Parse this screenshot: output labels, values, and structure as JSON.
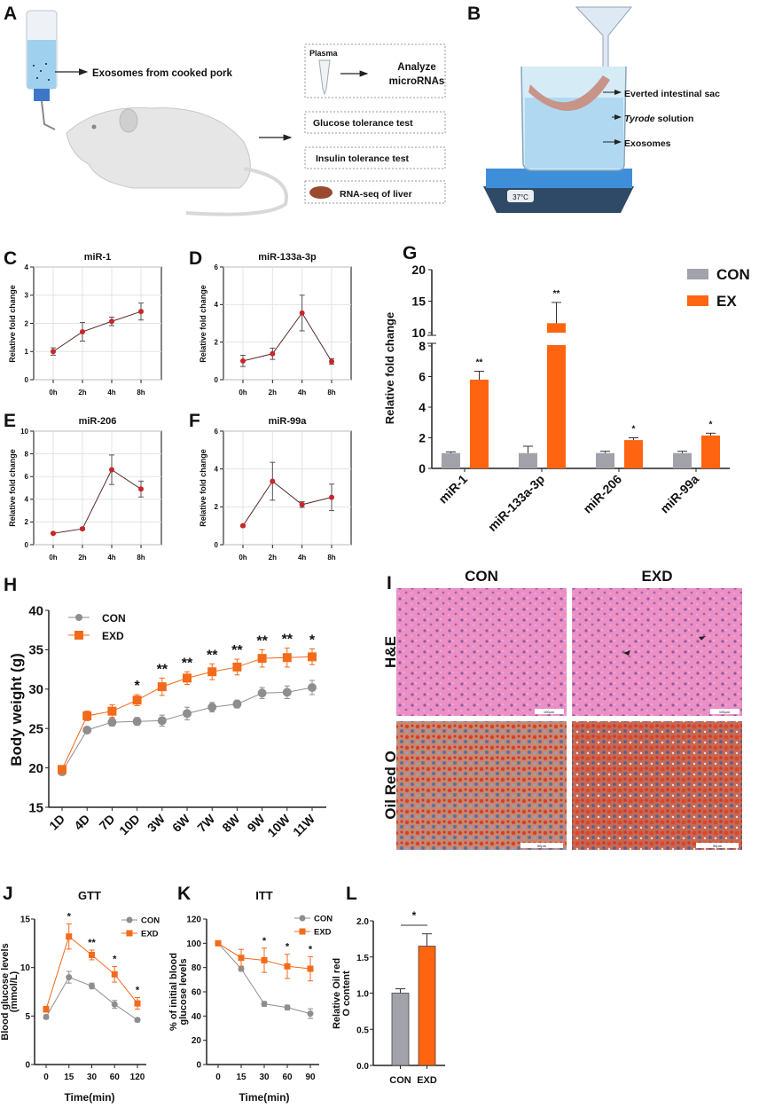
{
  "panel_letters": {
    "A": "A",
    "B": "B",
    "C": "C",
    "D": "D",
    "E": "E",
    "F": "F",
    "G": "G",
    "H": "H",
    "I": "I",
    "J": "J",
    "K": "K",
    "L": "L"
  },
  "panel_a": {
    "exosome_label": "Exosomes from cooked pork",
    "plasma_label": "Plasma",
    "analyze_line1": "Analyze",
    "analyze_line2": "microRNAs",
    "gtt_box": "Glucose tolerance test",
    "itt_box": "Insulin tolerance test",
    "rnaseq_box": "RNA-seq of liver"
  },
  "panel_b": {
    "sac_label": "Everted intestinal sac",
    "tyrode_italic": "Tyrode",
    "tyrode_rest": " solution",
    "exosomes_label": "Exosomes",
    "temperature": "37°C"
  },
  "panel_i": {
    "col_con": "CON",
    "col_exd": "EXD",
    "row_he": "H&E",
    "row_oil": "Oil Red O",
    "scale_he": "100μm",
    "scale_oil": "50μm"
  },
  "colors": {
    "marker_red": "#c8262a",
    "con_gray": "#8e8e8e",
    "exd_orange": "#f26a1b",
    "bar_gray": "#a2a2aa",
    "bar_orange": "#ff6410"
  },
  "chart_data": [
    {
      "panel": "C",
      "type": "line",
      "title": "miR-1",
      "ylabel": "Relative fold change",
      "categories": [
        "0h",
        "2h",
        "4h",
        "8h"
      ],
      "ylim": [
        0,
        4
      ],
      "yticks": [
        "0",
        "1",
        "2",
        "3",
        "4"
      ],
      "grid": true,
      "series": [
        {
          "values": [
            1.0,
            1.7,
            2.07,
            2.42
          ],
          "errors": [
            0.13,
            0.33,
            0.15,
            0.3
          ]
        }
      ]
    },
    {
      "panel": "D",
      "type": "line",
      "title": "miR-133a-3p",
      "ylabel": "Relative fold change",
      "categories": [
        "0h",
        "2h",
        "4h",
        "8h"
      ],
      "ylim": [
        0,
        6
      ],
      "yticks": [
        "0",
        "2",
        "4",
        "6"
      ],
      "grid": true,
      "series": [
        {
          "values": [
            1.0,
            1.38,
            3.55,
            0.97
          ],
          "errors": [
            0.3,
            0.3,
            0.95,
            0.15
          ]
        }
      ]
    },
    {
      "panel": "E",
      "type": "line",
      "title": "miR-206",
      "ylabel": "Relative fold change",
      "categories": [
        "0h",
        "2h",
        "4h",
        "8h"
      ],
      "ylim": [
        0,
        10
      ],
      "yticks": [
        "0",
        "2",
        "4",
        "6",
        "8",
        "10"
      ],
      "grid": true,
      "series": [
        {
          "values": [
            1.0,
            1.4,
            6.6,
            4.9
          ],
          "errors": [
            0.05,
            0.1,
            1.3,
            0.7
          ]
        }
      ]
    },
    {
      "panel": "F",
      "type": "line",
      "title": "miR-99a",
      "ylabel": "Relative fold change",
      "categories": [
        "0h",
        "2h",
        "4h",
        "8h"
      ],
      "ylim": [
        0,
        6
      ],
      "yticks": [
        "0",
        "2",
        "4",
        "6"
      ],
      "grid": true,
      "series": [
        {
          "values": [
            1.0,
            3.35,
            2.12,
            2.5
          ],
          "errors": [
            0.05,
            1.0,
            0.15,
            0.7
          ]
        }
      ]
    },
    {
      "panel": "G",
      "type": "bar",
      "ylabel": "Relative fold change",
      "categories": [
        "miR-1",
        "miR-133a-3p",
        "miR-206",
        "miR-99a"
      ],
      "ylim": [
        0,
        20
      ],
      "axis_break": [
        8,
        10
      ],
      "yticks": [
        "0",
        "2",
        "4",
        "6",
        "8",
        "10",
        "15",
        "20"
      ],
      "legend": "top-right",
      "series": [
        {
          "name": "CON",
          "values": [
            1.0,
            1.0,
            1.0,
            1.0
          ],
          "errors": [
            0.08,
            0.45,
            0.12,
            0.12
          ]
        },
        {
          "name": "EX",
          "values": [
            5.8,
            11.5,
            1.85,
            2.15
          ],
          "errors": [
            0.55,
            3.3,
            0.15,
            0.15
          ]
        }
      ],
      "significance": [
        "**",
        "**",
        "*",
        "*"
      ]
    },
    {
      "panel": "H",
      "type": "line",
      "ylabel": "Body weight (g)",
      "categories": [
        "1D",
        "4D",
        "7D",
        "10D",
        "3W",
        "6W",
        "7W",
        "8W",
        "9W",
        "10W",
        "11W"
      ],
      "ylim": [
        15,
        40
      ],
      "yticks": [
        "15",
        "20",
        "25",
        "30",
        "35",
        "40"
      ],
      "legend": "top-left",
      "series": [
        {
          "name": "CON",
          "values": [
            19.5,
            24.8,
            25.8,
            25.9,
            26.0,
            26.9,
            27.7,
            28.1,
            29.5,
            29.6,
            30.2
          ],
          "errors": [
            0.4,
            0.4,
            0.5,
            0.5,
            0.7,
            0.8,
            0.6,
            0.5,
            0.7,
            0.8,
            0.9
          ]
        },
        {
          "name": "EXD",
          "values": [
            19.8,
            26.6,
            27.2,
            28.6,
            30.3,
            31.4,
            32.2,
            32.8,
            33.9,
            34.0,
            34.1
          ],
          "errors": [
            0.5,
            0.6,
            0.8,
            0.7,
            1.1,
            0.8,
            1.0,
            1.0,
            1.1,
            1.2,
            1.0
          ]
        }
      ],
      "significance": [
        "",
        "",
        "",
        "*",
        "**",
        "**",
        "**",
        "**",
        "**",
        "**",
        "*"
      ]
    },
    {
      "panel": "J",
      "type": "line",
      "title": "GTT",
      "xlabel": "Time(min)",
      "ylabel": [
        "Blood glucose levels",
        "(mmol/L)"
      ],
      "categories": [
        "0",
        "15",
        "30",
        "60",
        "120"
      ],
      "ylim": [
        0,
        15
      ],
      "yticks": [
        "0",
        "5",
        "10",
        "15"
      ],
      "legend": "top-right",
      "series": [
        {
          "name": "CON",
          "values": [
            4.9,
            9.0,
            8.1,
            6.2,
            4.6
          ],
          "errors": [
            0.2,
            0.6,
            0.3,
            0.4,
            0.2
          ]
        },
        {
          "name": "EXD",
          "values": [
            5.7,
            13.2,
            11.3,
            9.3,
            6.3
          ],
          "errors": [
            0.3,
            1.3,
            0.5,
            0.8,
            0.6
          ]
        }
      ],
      "significance": [
        "",
        "*",
        "**",
        "*",
        "*"
      ]
    },
    {
      "panel": "K",
      "type": "line",
      "title": "ITT",
      "xlabel": "Time(min)",
      "ylabel": [
        "% of initial blood",
        "glucose levels"
      ],
      "categories": [
        "0",
        "15",
        "30",
        "60",
        "90"
      ],
      "ylim": [
        0,
        120
      ],
      "yticks": [
        "0",
        "20",
        "40",
        "60",
        "80",
        "100",
        "120"
      ],
      "legend": "top-right",
      "series": [
        {
          "name": "CON",
          "values": [
            100,
            79,
            50,
            47,
            42
          ],
          "errors": [
            0,
            2,
            2,
            2,
            4
          ]
        },
        {
          "name": "EXD",
          "values": [
            100,
            88,
            86,
            81,
            79
          ],
          "errors": [
            0,
            7,
            10,
            10,
            10
          ]
        }
      ],
      "significance": [
        "",
        "",
        "*",
        "*",
        "*"
      ]
    },
    {
      "panel": "L",
      "type": "bar",
      "ylabel": [
        "Relative Oil red",
        "O content"
      ],
      "categories": [
        "CON",
        "EXD"
      ],
      "ylim": [
        0,
        2
      ],
      "yticks": [
        "0.0",
        "0.5",
        "1.0",
        "1.5",
        "2.0"
      ],
      "values": [
        1.0,
        1.65
      ],
      "errors": [
        0.06,
        0.17
      ],
      "significance": "*"
    }
  ]
}
